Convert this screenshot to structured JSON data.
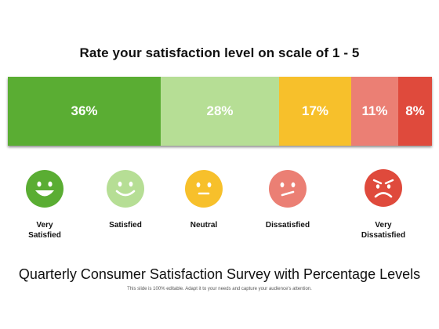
{
  "title": "Rate your satisfaction level on scale of 1 - 5",
  "subtitle": "Quarterly Consumer Satisfaction Survey with Percentage Levels",
  "footnote": "This slide is 100% editable. Adapt it to your needs and capture your audience's attention.",
  "chart_data": {
    "type": "bar",
    "orientation": "horizontal-stacked-100",
    "title": "Rate your satisfaction level on scale of 1 - 5",
    "categories": [
      "Very Satisfied",
      "Satisfied",
      "Neutral",
      "Dissatisfied",
      "Very Dissatisfied"
    ],
    "values": [
      36,
      28,
      17,
      11,
      8
    ],
    "value_labels": [
      "36%",
      "28%",
      "17%",
      "11%",
      "8%"
    ],
    "colors": [
      "#5aad33",
      "#b6de95",
      "#f7c02b",
      "#eb7f74",
      "#df4a3c"
    ],
    "unit": "%",
    "grid": false,
    "legend": "none"
  },
  "faces": [
    {
      "icon": "very-happy-face-icon",
      "label": "Very\nSatisfied",
      "color": "#5aad33"
    },
    {
      "icon": "happy-face-icon",
      "label": "Satisfied",
      "color": "#b6de95"
    },
    {
      "icon": "neutral-face-icon",
      "label": "Neutral",
      "color": "#f7c02b"
    },
    {
      "icon": "unhappy-face-icon",
      "label": "Dissatisfied",
      "color": "#eb7f74"
    },
    {
      "icon": "angry-face-icon",
      "label": "Very\nDissatisfied",
      "color": "#df4a3c"
    }
  ]
}
